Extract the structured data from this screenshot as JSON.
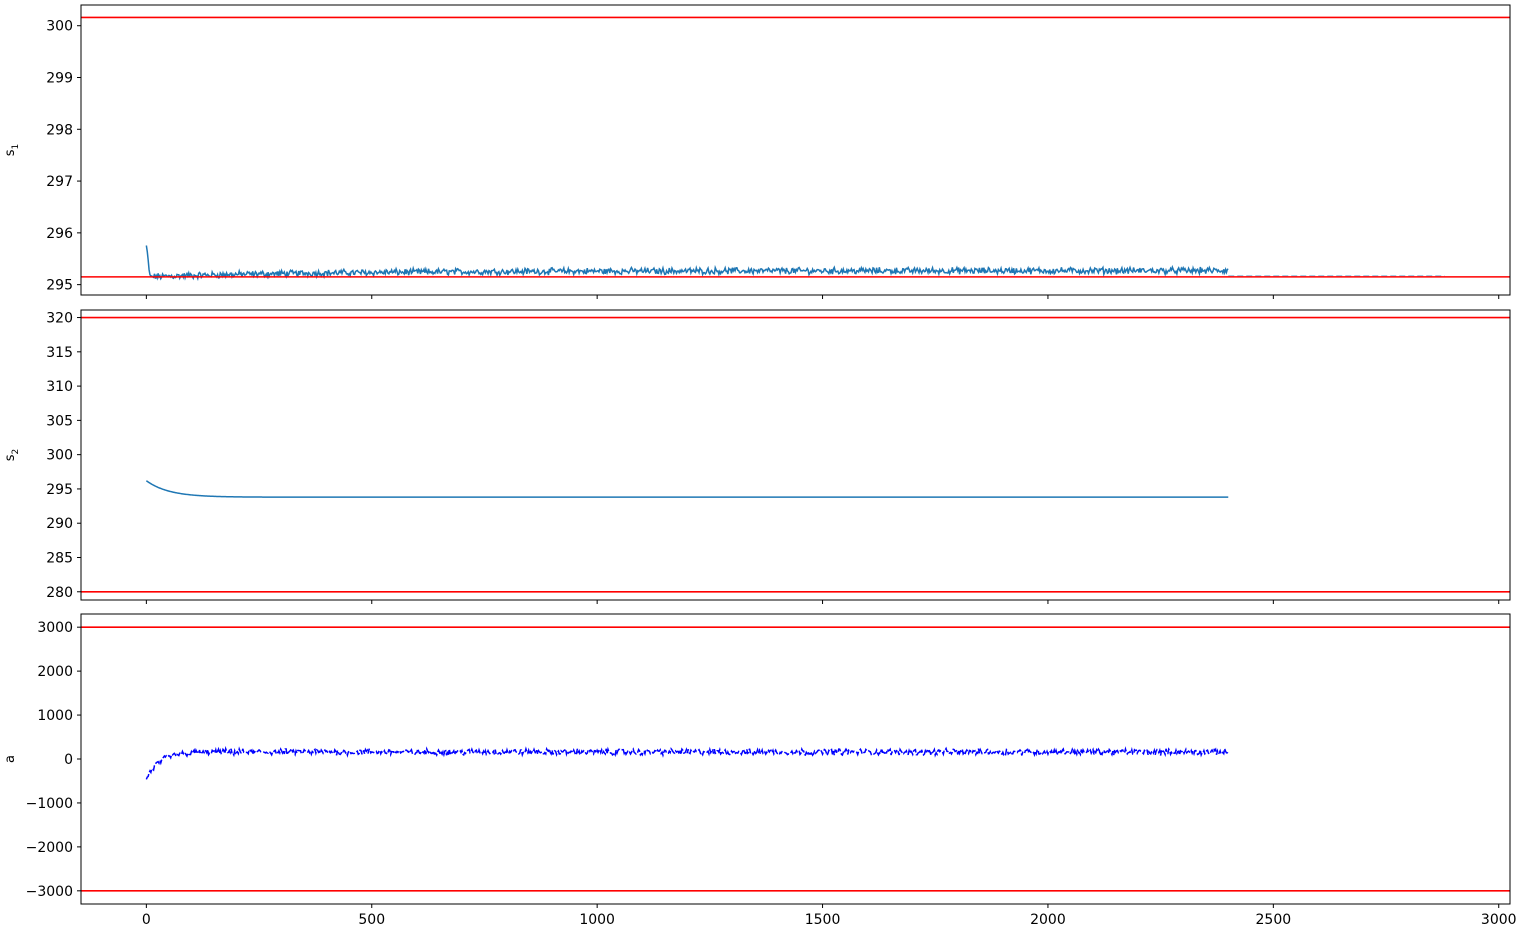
{
  "chart_data": [
    {
      "type": "line",
      "ylabel": "s",
      "ylabel_sub": "1",
      "xlim": [
        -145,
        3025
      ],
      "ylim": [
        294.8,
        300.4
      ],
      "yticks": [
        295,
        296,
        297,
        298,
        299,
        300
      ],
      "xticks": [
        0,
        500,
        1000,
        1500,
        2000,
        2500,
        3000
      ],
      "show_xticklabels": false,
      "hlines": [
        {
          "y": 300.16,
          "color": "#ff0000"
        },
        {
          "y": 295.15,
          "color": "#ff0000"
        }
      ],
      "series": [
        {
          "color": "#1f77b4",
          "style": "solid",
          "x_start": 0,
          "x_end": 2400,
          "start_value": 295.75,
          "steady_value": 295.27,
          "dip_value": 295.15,
          "noise_amplitude": 0.05,
          "noise_recovery": 400
        }
      ],
      "dashed_extension": {
        "x_start": 2400,
        "x_end": 2880,
        "y": 295.17,
        "color": "#1f77b4"
      }
    },
    {
      "type": "line",
      "ylabel": "s",
      "ylabel_sub": "2",
      "xlim": [
        -145,
        3025
      ],
      "ylim": [
        278.8,
        321.1
      ],
      "yticks": [
        280,
        285,
        290,
        295,
        300,
        305,
        310,
        315,
        320
      ],
      "xticks": [
        0,
        500,
        1000,
        1500,
        2000,
        2500,
        3000
      ],
      "show_xticklabels": false,
      "hlines": [
        {
          "y": 320,
          "color": "#ff0000"
        },
        {
          "y": 280,
          "color": "#ff0000"
        }
      ],
      "series": [
        {
          "color": "#1f77b4",
          "style": "solid",
          "x_start": 0,
          "x_end": 2400,
          "start_value": 296.2,
          "steady_value": 293.8,
          "decay_constant": 50,
          "noise_amplitude": 0
        }
      ]
    },
    {
      "type": "line",
      "ylabel": "a",
      "ylabel_sub": "",
      "xlim": [
        -145,
        3025
      ],
      "ylim": [
        -3300,
        3300
      ],
      "yticks": [
        -3000,
        -2000,
        -1000,
        0,
        1000,
        2000,
        3000
      ],
      "yticklabels": [
        "−3000",
        "−2000",
        "−1000",
        "0",
        "1000",
        "2000",
        "3000"
      ],
      "xticks": [
        0,
        500,
        1000,
        1500,
        2000,
        2500,
        3000
      ],
      "xticklabels": [
        "0",
        "500",
        "1000",
        "1500",
        "2000",
        "2500",
        "3000"
      ],
      "show_xticklabels": true,
      "hlines": [
        {
          "y": 3000,
          "color": "#ff0000"
        },
        {
          "y": -3000,
          "color": "#ff0000"
        }
      ],
      "series": [
        {
          "color": "#0000ff",
          "style": "dashed",
          "x_start": 0,
          "x_end": 2400,
          "start_value": -450,
          "steady_value": 160,
          "decay_constant": 30,
          "noise_amplitude": 55
        }
      ]
    }
  ]
}
